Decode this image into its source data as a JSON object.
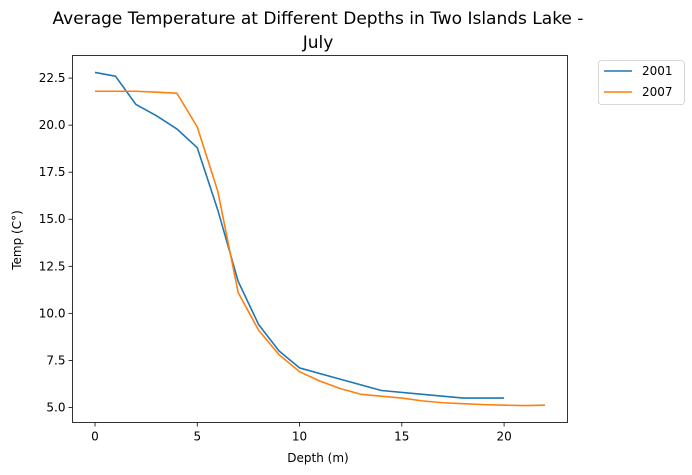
{
  "chart_data": {
    "type": "line",
    "title_line1": "Average Temperature at Different Depths in Two Islands Lake -",
    "title_line2": "July",
    "xlabel": "Depth (m)",
    "ylabel": "Temp (C°)",
    "xlim": [
      -1.1,
      23.1
    ],
    "ylim": [
      4.2,
      23.7
    ],
    "xticks": [
      0,
      5,
      10,
      15,
      20
    ],
    "xtick_labels": [
      "0",
      "5",
      "10",
      "15",
      "20"
    ],
    "yticks": [
      5.0,
      7.5,
      10.0,
      12.5,
      15.0,
      17.5,
      20.0,
      22.5
    ],
    "ytick_labels": [
      "5.0",
      "7.5",
      "10.0",
      "12.5",
      "15.0",
      "17.5",
      "20.0",
      "22.5"
    ],
    "grid": false,
    "legend_position": "outside top-right",
    "series": [
      {
        "name": "2001",
        "color": "#1f77b4",
        "x": [
          0,
          1,
          2,
          3,
          4,
          5,
          6,
          7,
          8,
          9,
          10,
          12,
          14,
          16,
          18,
          20
        ],
        "y": [
          22.8,
          22.6,
          21.1,
          20.5,
          19.8,
          18.8,
          15.5,
          11.7,
          9.4,
          8.0,
          7.1,
          6.5,
          5.9,
          5.7,
          5.5,
          5.5
        ]
      },
      {
        "name": "2007",
        "color": "#ff7f0e",
        "x": [
          0,
          1,
          2,
          3,
          4,
          5,
          6,
          7,
          8,
          9,
          10,
          11,
          12,
          13,
          14,
          15,
          16,
          17,
          18,
          19,
          20,
          21,
          22
        ],
        "y": [
          21.8,
          21.8,
          21.8,
          21.75,
          21.7,
          19.9,
          16.5,
          11.1,
          9.1,
          7.8,
          6.9,
          6.4,
          6.0,
          5.7,
          5.6,
          5.5,
          5.35,
          5.25,
          5.2,
          5.15,
          5.12,
          5.1,
          5.12
        ]
      }
    ]
  }
}
